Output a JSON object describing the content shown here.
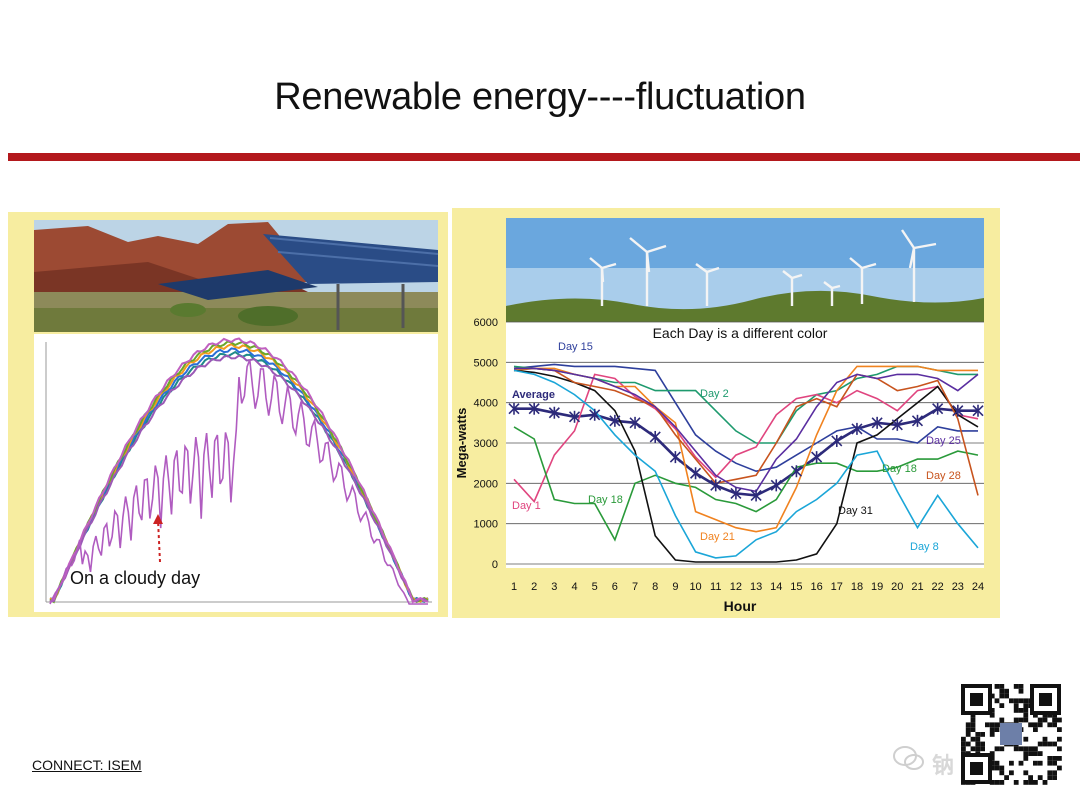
{
  "slide": {
    "title": "Renewable energy----fluctuation",
    "footer": "CONNECT: ISEM",
    "watermark": "钠电知析",
    "colors": {
      "rule": "#b3181c",
      "panel": "#f7eda0"
    }
  },
  "solar": {
    "photo": "solar-farm-photo",
    "annotation": "On a cloudy day",
    "annotation_arrow_color": "#cc2222"
  },
  "wind": {
    "photo": "wind-farm-photo"
  },
  "chart_data": [
    {
      "type": "line",
      "title": "",
      "xlabel": "",
      "ylabel": "",
      "series_colors": [
        "#1f8a8a",
        "#2a6fd6",
        "#f29b1d",
        "#6aa82a",
        "#9b59b6",
        "#c060c0"
      ],
      "annotation": "On a cloudy day",
      "note": "clear-day bell curves overlaid with a fluctuating cloudy-day trace"
    },
    {
      "type": "line",
      "title": "Each Day is a different color",
      "xlabel": "Hour",
      "ylabel": "Mega-watts",
      "x": [
        1,
        2,
        3,
        4,
        5,
        6,
        7,
        8,
        9,
        10,
        11,
        12,
        13,
        14,
        15,
        16,
        17,
        18,
        19,
        20,
        21,
        22,
        23,
        24
      ],
      "ylim": [
        0,
        6000
      ],
      "yticks": [
        0,
        1000,
        2000,
        3000,
        4000,
        5000,
        6000
      ],
      "grid": true,
      "series": [
        {
          "name": "Average",
          "color": "#2d2a7a",
          "values": [
            3850,
            3850,
            3750,
            3650,
            3700,
            3550,
            3500,
            3150,
            2650,
            2250,
            1950,
            1750,
            1700,
            1950,
            2300,
            2650,
            3050,
            3350,
            3500,
            3450,
            3550,
            3850,
            3800,
            3800
          ]
        },
        {
          "name": "Day 15",
          "color": "#2e3f9c",
          "values": [
            4850,
            4900,
            4950,
            4900,
            4900,
            4900,
            4850,
            4800,
            4000,
            3200,
            2800,
            2500,
            2300,
            2400,
            2700,
            3000,
            3300,
            3400,
            3100,
            3100,
            3000,
            3400,
            3300,
            3300
          ]
        },
        {
          "name": "Day 2",
          "color": "#1e9a6e",
          "values": [
            4900,
            4850,
            4800,
            4700,
            4600,
            4500,
            4500,
            4300,
            4300,
            4300,
            3800,
            3300,
            3000,
            3000,
            3800,
            4200,
            4300,
            4600,
            4700,
            4900,
            4900,
            4800,
            4700,
            4700
          ]
        },
        {
          "name": "Day 1",
          "color": "#e0457f",
          "values": [
            2100,
            1550,
            2700,
            3300,
            4700,
            4600,
            4150,
            3850,
            3350,
            2650,
            2150,
            2700,
            2900,
            3700,
            4100,
            4200,
            4000,
            4300,
            4100,
            3800,
            4300,
            4400,
            3700,
            3600
          ]
        },
        {
          "name": "Day 18",
          "color": "#2a9a3a",
          "values": [
            3400,
            3100,
            1600,
            1500,
            1500,
            600,
            2000,
            2200,
            2000,
            1900,
            1600,
            1500,
            1300,
            1600,
            2400,
            2500,
            2500,
            2300,
            2300,
            2400,
            2600,
            2600,
            2800,
            2700
          ]
        },
        {
          "name": "Day 21",
          "color": "#f0821f",
          "values": [
            4800,
            4850,
            4850,
            4700,
            4600,
            4400,
            4400,
            3900,
            3500,
            1300,
            1100,
            900,
            800,
            900,
            1900,
            3200,
            4300,
            4900,
            4900,
            4900,
            4900,
            4800,
            4800,
            4800
          ]
        },
        {
          "name": "Day 31",
          "color": "#111111",
          "values": [
            4800,
            4750,
            4650,
            4500,
            4300,
            3800,
            2800,
            700,
            100,
            50,
            50,
            50,
            50,
            50,
            100,
            250,
            1000,
            3000,
            3200,
            3600,
            4000,
            4400,
            3700,
            3400
          ]
        },
        {
          "name": "Day 8",
          "color": "#1ba6d8",
          "values": [
            4800,
            4700,
            4500,
            4200,
            3800,
            3200,
            2700,
            2300,
            1200,
            300,
            150,
            200,
            600,
            800,
            1300,
            1600,
            2000,
            2700,
            2800,
            1800,
            900,
            1700,
            1000,
            400
          ]
        },
        {
          "name": "Day 28",
          "color": "#c8541e",
          "values": [
            4850,
            4850,
            4800,
            4500,
            4400,
            4300,
            4100,
            3900,
            3200,
            2600,
            2000,
            2100,
            2200,
            3000,
            3900,
            4100,
            3900,
            4700,
            4600,
            4300,
            4400,
            4550,
            3600,
            1700
          ]
        },
        {
          "name": "Day 25",
          "color": "#5a2ea0",
          "values": [
            4850,
            4850,
            4800,
            4700,
            4600,
            4400,
            4200,
            3900,
            3400,
            2800,
            2200,
            1900,
            1800,
            2600,
            3100,
            3900,
            4500,
            4700,
            4600,
            4700,
            4700,
            4600,
            4300,
            4700
          ]
        }
      ],
      "labels": [
        {
          "text": "Day 15",
          "color": "#2e3f9c"
        },
        {
          "text": "Day 2",
          "color": "#1e9a6e"
        },
        {
          "text": "Average",
          "color": "#2d2a7a"
        },
        {
          "text": "Day 1",
          "color": "#e0457f"
        },
        {
          "text": "Day 18",
          "color": "#2a9a3a"
        },
        {
          "text": "Day 21",
          "color": "#f0821f"
        },
        {
          "text": "Day 31",
          "color": "#111111"
        },
        {
          "text": "Day 8",
          "color": "#1ba6d8"
        },
        {
          "text": "Day 18",
          "color": "#2a9a3a"
        },
        {
          "text": "Day 28",
          "color": "#c8541e"
        },
        {
          "text": "Day 25",
          "color": "#5a2ea0"
        }
      ]
    }
  ]
}
